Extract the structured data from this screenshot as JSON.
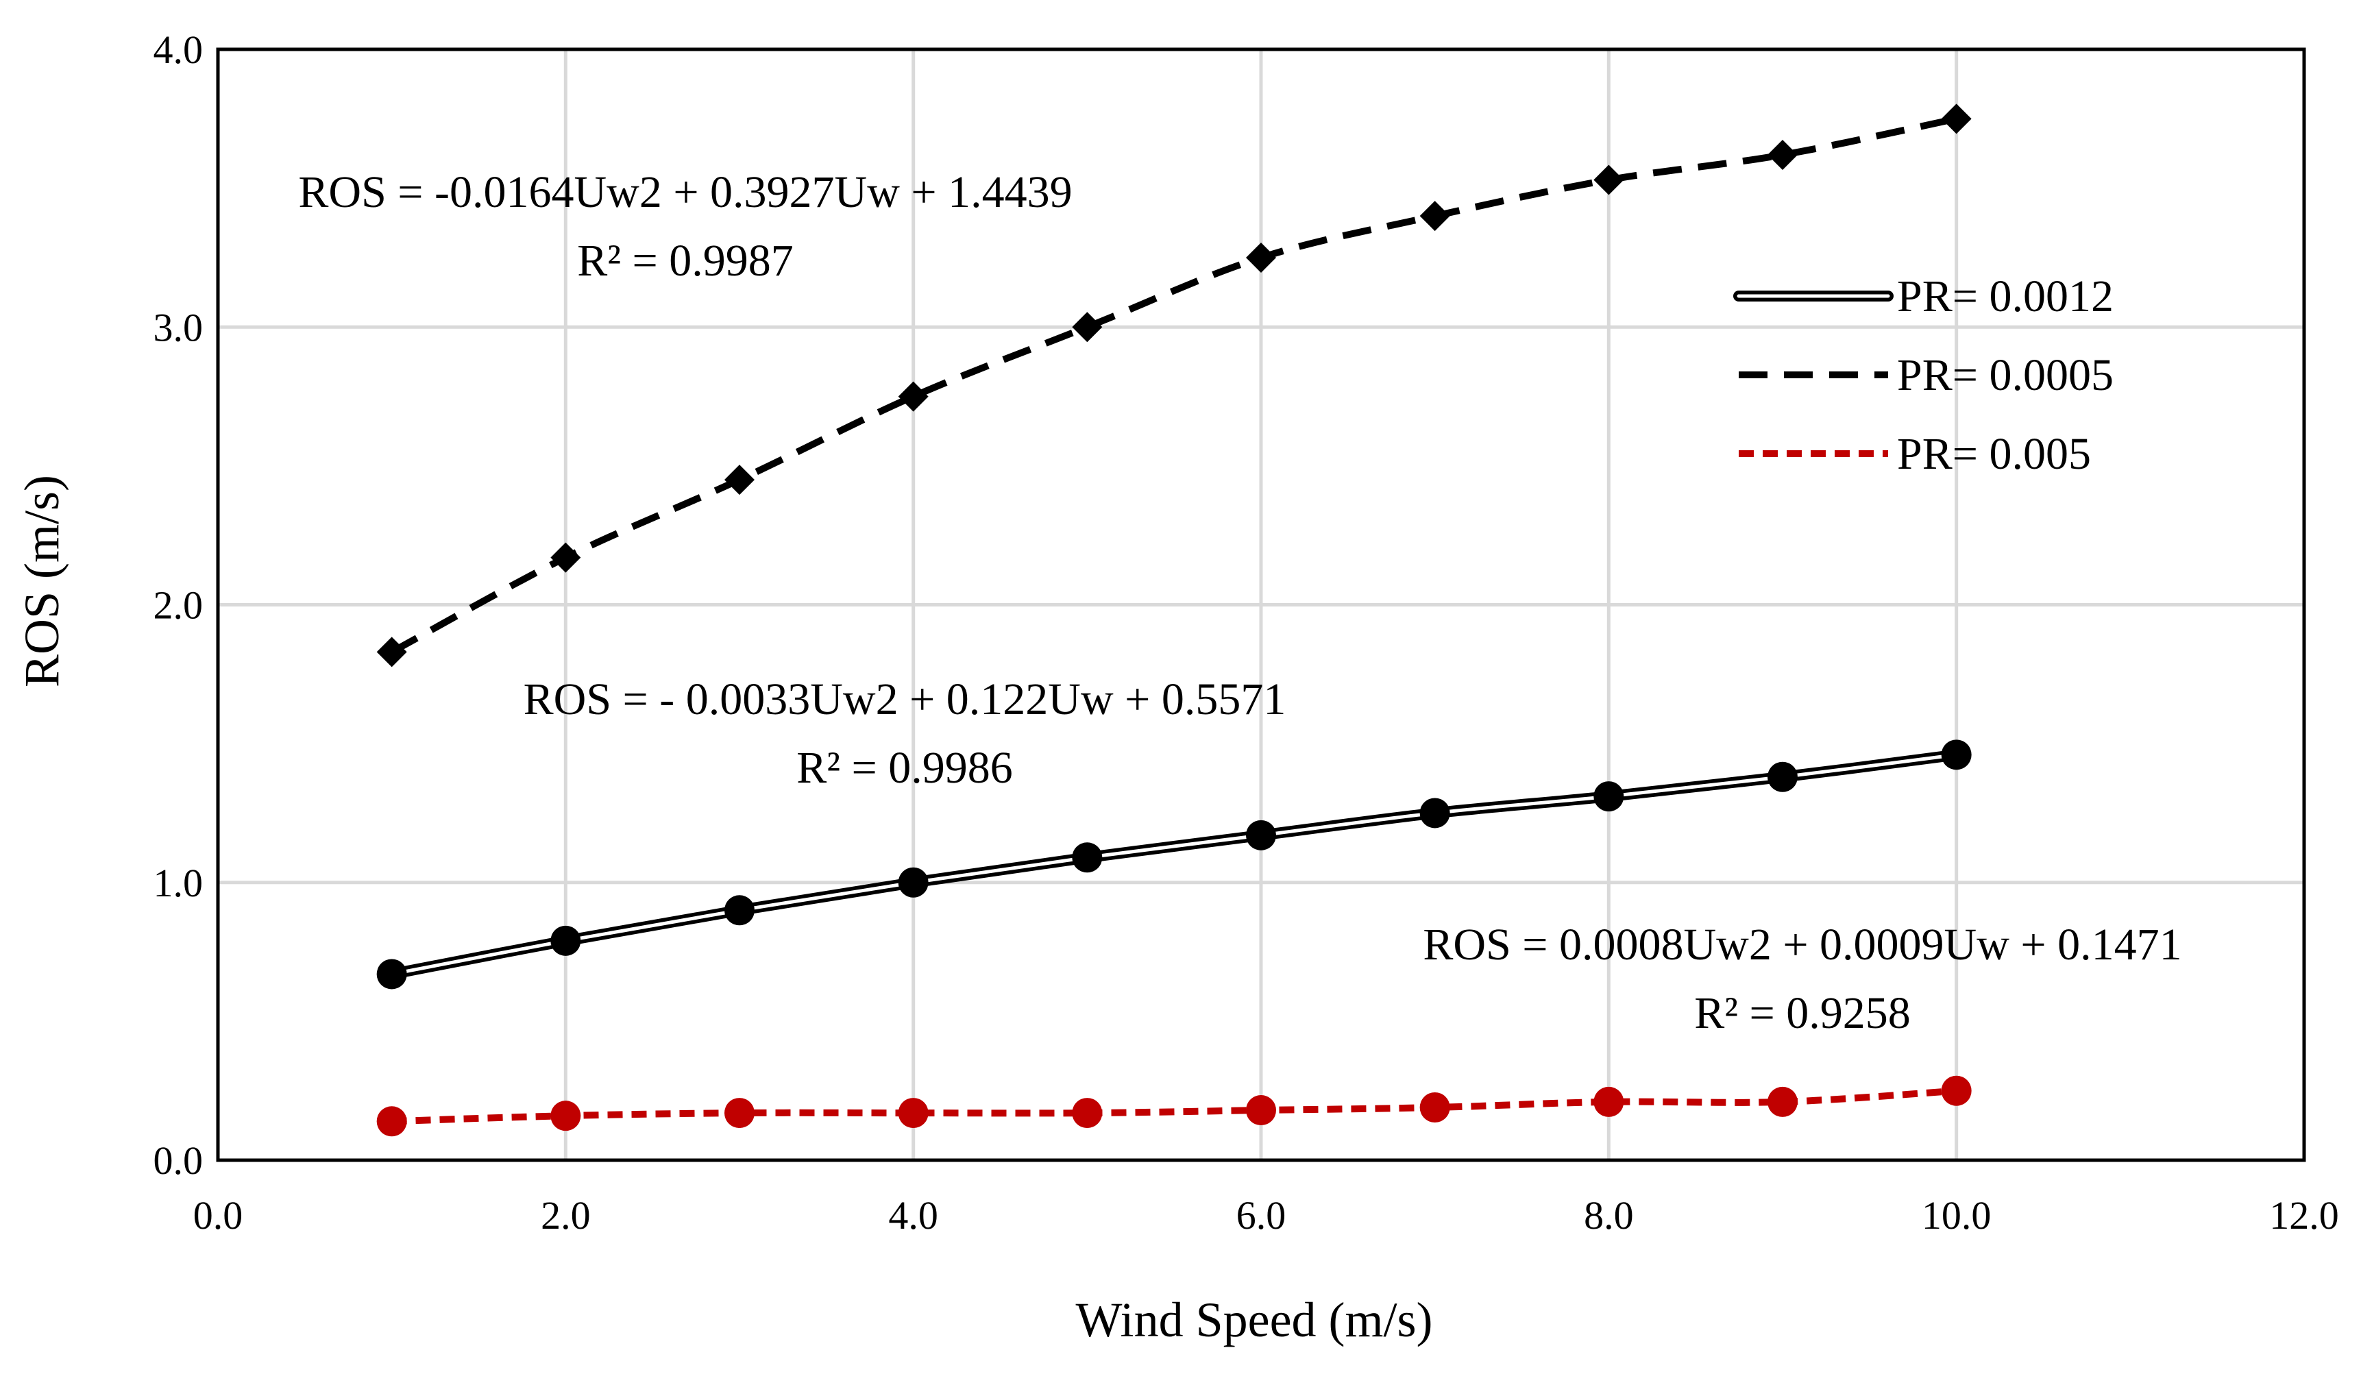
{
  "chart_data": {
    "type": "line",
    "xlabel": "Wind Speed (m/s)",
    "ylabel": "ROS (m/s)",
    "xlim": [
      0,
      12
    ],
    "ylim": [
      0,
      4
    ],
    "x_ticks": [
      "0.0",
      "2.0",
      "4.0",
      "6.0",
      "8.0",
      "10.0",
      "12.0"
    ],
    "y_ticks": [
      "0.0",
      "1.0",
      "2.0",
      "3.0",
      "4.0"
    ],
    "grid": true,
    "legend_position": "right",
    "series": [
      {
        "name": "PR= 0.0012",
        "style": "double",
        "marker": "circle",
        "color": "#000000",
        "x": [
          1,
          2,
          3,
          4,
          5,
          6,
          7,
          8,
          9,
          10
        ],
        "values": [
          0.67,
          0.79,
          0.9,
          1.0,
          1.09,
          1.17,
          1.25,
          1.31,
          1.38,
          1.46
        ]
      },
      {
        "name": "PR= 0.0005",
        "style": "dashed",
        "marker": "diamond",
        "color": "#000000",
        "x": [
          1,
          2,
          3,
          4,
          5,
          6,
          7,
          8,
          9,
          10
        ],
        "values": [
          1.83,
          2.17,
          2.45,
          2.75,
          3.0,
          3.25,
          3.4,
          3.53,
          3.62,
          3.75
        ]
      },
      {
        "name": "PR= 0.005",
        "style": "dotted",
        "marker": "circle",
        "color": "#c00000",
        "x": [
          1,
          2,
          3,
          4,
          5,
          6,
          7,
          8,
          9,
          10
        ],
        "values": [
          0.14,
          0.16,
          0.17,
          0.17,
          0.17,
          0.18,
          0.19,
          0.21,
          0.21,
          0.25
        ]
      }
    ],
    "annotations": [
      {
        "line1": "ROS = -0.0164Uw2 + 0.3927Uw + 1.4439",
        "line2": "R² = 0.9987"
      },
      {
        "line1": "ROS = - 0.0033Uw2 + 0.122Uw + 0.5571",
        "line2": "R² = 0.9986"
      },
      {
        "line1": "ROS = 0.0008Uw2 + 0.0009Uw + 0.1471",
        "line2": "R² = 0.9258"
      }
    ]
  }
}
